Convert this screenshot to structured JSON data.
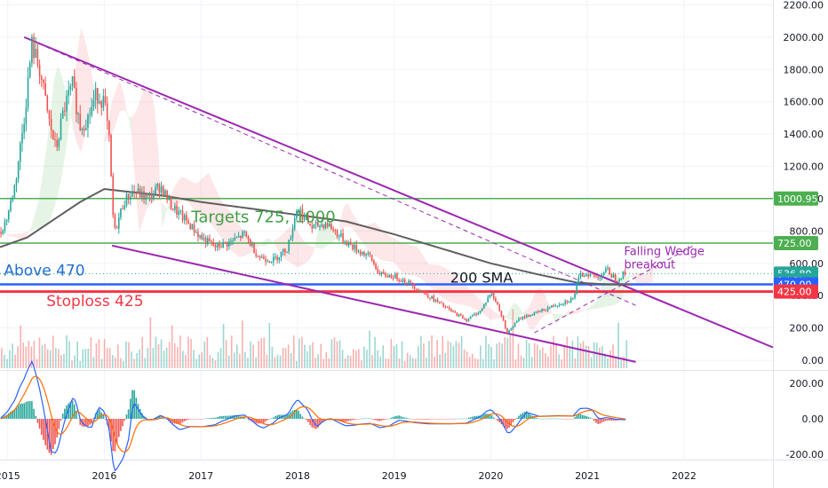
{
  "chart_data": {
    "type": "candlestick",
    "price_axis": {
      "ticks": [
        "2200.00",
        "2000.00",
        "1800.00",
        "1600.00",
        "1400.00",
        "1200.00",
        "1000.00",
        "800.00",
        "600.00",
        "400.00",
        "200.00",
        "0.00"
      ],
      "tick_values": [
        2200,
        2000,
        1800,
        1600,
        1400,
        1200,
        1000,
        800,
        600,
        400,
        200,
        0
      ],
      "range": [
        -60,
        2230
      ]
    },
    "macd_axis": {
      "ticks": [
        "200.00",
        "0.00",
        "-200.00"
      ],
      "tick_values": [
        200,
        0,
        -200
      ],
      "range": [
        -230,
        270
      ]
    },
    "time_axis": {
      "ticks": [
        "2015",
        "2016",
        "2017",
        "2018",
        "2019",
        "2020",
        "2021",
        "2022"
      ],
      "tick_values": [
        2015,
        2016,
        2017,
        2018,
        2019,
        2020,
        2021,
        2022
      ],
      "range": [
        2014.92,
        2022.92
      ]
    },
    "price_labels": [
      {
        "text": "1000.95",
        "value": 1000.95,
        "color": "#4caf50"
      },
      {
        "text": "725.00",
        "value": 725,
        "color": "#4caf50"
      },
      {
        "text": "536.80",
        "value": 536.8,
        "color": "#ffffff"
      },
      {
        "text": "1d 3h",
        "value": 495,
        "color": "#ffffff"
      },
      {
        "text": "470.00",
        "value": 470,
        "color": "#2962ff"
      },
      {
        "text": "425.00",
        "value": 425,
        "color": "#f23645"
      }
    ],
    "horizontal_levels": [
      {
        "value": 1000.95,
        "color": "#4caf50",
        "width": 1.5
      },
      {
        "value": 725,
        "color": "#4caf50",
        "width": 1.5
      },
      {
        "value": 470,
        "color": "#2962ff",
        "width": 2.5
      },
      {
        "value": 425,
        "color": "#f23645",
        "width": 3
      }
    ],
    "annotations": [
      {
        "text": "Targets 725, 1000",
        "color": "#43a047",
        "x": 2016.9,
        "y": 855,
        "size": 18
      },
      {
        "text": "Above 470",
        "color": "#1e6fd1",
        "x": 2014.96,
        "y": 525,
        "size": 17
      },
      {
        "text": "Stoploss 425",
        "color": "#f23645",
        "x": 2015.4,
        "y": 335,
        "size": 17
      },
      {
        "text": "200 SMA",
        "color": "#131722",
        "x": 2019.58,
        "y": 480,
        "size": 16
      },
      {
        "text": "Falling Wedge",
        "color": "#9c27b0",
        "x": 2021.38,
        "y": 650,
        "size": 13
      },
      {
        "text": "breakout",
        "color": "#9c27b0",
        "x": 2021.38,
        "y": 570,
        "size": 13
      }
    ],
    "wedge_lines": [
      {
        "style": "solid",
        "color": "#9c27b0",
        "points": [
          [
            2015.17,
            2000
          ],
          [
            2022.92,
            80
          ]
        ]
      },
      {
        "style": "solid",
        "color": "#9c27b0",
        "points": [
          [
            2016.08,
            710
          ],
          [
            2021.5,
            -10
          ]
        ]
      },
      {
        "style": "dashed",
        "color": "#9c27b0",
        "points": [
          [
            2015.17,
            2000
          ],
          [
            2021.5,
            340
          ]
        ]
      },
      {
        "style": "dashed",
        "color": "#9c27b0",
        "points": [
          [
            2020.45,
            170
          ],
          [
            2022.1,
            710
          ]
        ]
      }
    ],
    "sma200": [
      [
        2014.92,
        700
      ],
      [
        2015.2,
        760
      ],
      [
        2015.5,
        880
      ],
      [
        2015.75,
        980
      ],
      [
        2016.0,
        1060
      ],
      [
        2016.3,
        1040
      ],
      [
        2016.6,
        1020
      ],
      [
        2017.0,
        980
      ],
      [
        2017.5,
        940
      ],
      [
        2018.0,
        900
      ],
      [
        2018.5,
        860
      ],
      [
        2019.0,
        780
      ],
      [
        2019.5,
        690
      ],
      [
        2020.0,
        600
      ],
      [
        2020.5,
        530
      ],
      [
        2020.9,
        480
      ],
      [
        2021.2,
        470
      ],
      [
        2021.45,
        470
      ]
    ],
    "price_path": [
      [
        2014.92,
        780
      ],
      [
        2015.0,
        900
      ],
      [
        2015.08,
        1100
      ],
      [
        2015.17,
        1500
      ],
      [
        2015.25,
        1950
      ],
      [
        2015.33,
        1800
      ],
      [
        2015.42,
        1500
      ],
      [
        2015.5,
        1300
      ],
      [
        2015.58,
        1550
      ],
      [
        2015.67,
        1700
      ],
      [
        2015.75,
        1450
      ],
      [
        2015.83,
        1500
      ],
      [
        2015.92,
        1650
      ],
      [
        2016.0,
        1600
      ],
      [
        2016.05,
        1350
      ],
      [
        2016.1,
        780
      ],
      [
        2016.2,
        980
      ],
      [
        2016.3,
        1050
      ],
      [
        2016.45,
        1000
      ],
      [
        2016.58,
        1080
      ],
      [
        2016.7,
        950
      ],
      [
        2016.85,
        860
      ],
      [
        2017.0,
        760
      ],
      [
        2017.15,
        700
      ],
      [
        2017.3,
        730
      ],
      [
        2017.45,
        780
      ],
      [
        2017.6,
        640
      ],
      [
        2017.75,
        620
      ],
      [
        2017.9,
        700
      ],
      [
        2018.0,
        960
      ],
      [
        2018.05,
        900
      ],
      [
        2018.15,
        820
      ],
      [
        2018.3,
        850
      ],
      [
        2018.45,
        760
      ],
      [
        2018.6,
        690
      ],
      [
        2018.75,
        640
      ],
      [
        2018.85,
        530
      ],
      [
        2019.0,
        520
      ],
      [
        2019.15,
        480
      ],
      [
        2019.3,
        420
      ],
      [
        2019.45,
        360
      ],
      [
        2019.6,
        300
      ],
      [
        2019.75,
        250
      ],
      [
        2019.9,
        310
      ],
      [
        2020.0,
        420
      ],
      [
        2020.08,
        330
      ],
      [
        2020.17,
        170
      ],
      [
        2020.3,
        260
      ],
      [
        2020.5,
        300
      ],
      [
        2020.7,
        350
      ],
      [
        2020.85,
        380
      ],
      [
        2020.92,
        520
      ],
      [
        2021.0,
        540
      ],
      [
        2021.1,
        510
      ],
      [
        2021.2,
        560
      ],
      [
        2021.3,
        500
      ],
      [
        2021.38,
        536.8
      ]
    ],
    "series": [
      {
        "name": "200 SMA",
        "color": "#5f5f5f"
      }
    ]
  }
}
